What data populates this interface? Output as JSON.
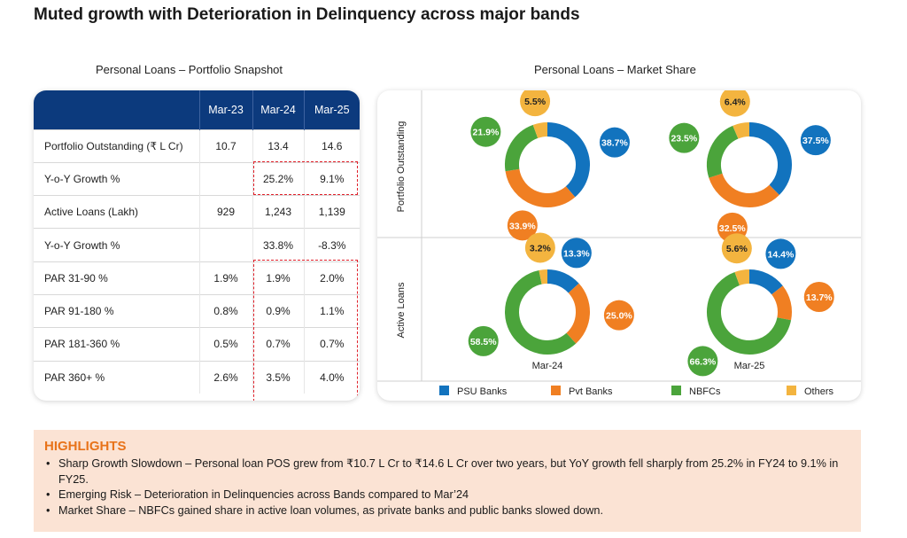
{
  "page": {
    "title": "Muted growth with Deterioration in Delinquency across major bands"
  },
  "table": {
    "title": "Personal Loans – Portfolio Snapshot",
    "columns": [
      "Mar-23",
      "Mar-24",
      "Mar-25"
    ],
    "rows": [
      {
        "label": "Portfolio Outstanding (₹ L Cr)",
        "values": [
          "10.7",
          "13.4",
          "14.6"
        ]
      },
      {
        "label": "Y-o-Y Growth %",
        "values": [
          "",
          "25.2%",
          "9.1%"
        ]
      },
      {
        "label": "Active Loans (Lakh)",
        "values": [
          "929",
          "1,243",
          "1,139"
        ]
      },
      {
        "label": "Y-o-Y Growth %",
        "values": [
          "",
          "33.8%",
          "-8.3%"
        ]
      },
      {
        "label": "PAR 31-90 %",
        "values": [
          "1.9%",
          "1.9%",
          "2.0%"
        ]
      },
      {
        "label": "PAR 91-180 %",
        "values": [
          "0.8%",
          "0.9%",
          "1.1%"
        ]
      },
      {
        "label": "PAR 181-360 %",
        "values": [
          "0.5%",
          "0.7%",
          "0.7%"
        ]
      },
      {
        "label": "PAR 360+ %",
        "values": [
          "2.6%",
          "3.5%",
          "4.0%"
        ]
      }
    ]
  },
  "colors": {
    "PSU Banks": "#1273be",
    "Pvt Banks": "#f07f22",
    "NBFCs": "#4ba43b",
    "Others": "#f3b43f",
    "table_header": "#0c3a7d",
    "dash": "#e0202a",
    "highlight_bg": "#fbe3d4",
    "highlight_title": "#e8731a"
  },
  "chart_data": {
    "type": "pie",
    "title": "Personal Loans – Market Share",
    "series_order": [
      "PSU Banks",
      "Pvt Banks",
      "NBFCs",
      "Others"
    ],
    "row_labels": [
      "Portfolio Outstanding",
      "Active Loans"
    ],
    "col_labels": [
      "Mar-24",
      "Mar-25"
    ],
    "donuts": [
      {
        "row": "Portfolio Outstanding",
        "col": "Mar-24",
        "values": [
          38.7,
          33.9,
          21.9,
          5.5
        ],
        "labels": [
          "38.7%",
          "33.9%",
          "21.9%",
          "5.5%"
        ]
      },
      {
        "row": "Portfolio Outstanding",
        "col": "Mar-25",
        "values": [
          37.5,
          32.5,
          23.5,
          6.4
        ],
        "labels": [
          "37.5%",
          "32.5%",
          "23.5%",
          "6.4%"
        ]
      },
      {
        "row": "Active Loans",
        "col": "Mar-24",
        "values": [
          13.3,
          25.0,
          58.5,
          3.2
        ],
        "labels": [
          "13.3%",
          "25.0%",
          "58.5%",
          "3.2%"
        ]
      },
      {
        "row": "Active Loans",
        "col": "Mar-25",
        "values": [
          14.4,
          13.7,
          66.3,
          5.6
        ],
        "labels": [
          "14.4%",
          "13.7%",
          "66.3%",
          "5.6%"
        ]
      }
    ],
    "legend": [
      "PSU Banks",
      "Pvt Banks",
      "NBFCs",
      "Others"
    ]
  },
  "highlights": {
    "title": "HIGHLIGHTS",
    "items": [
      "Sharp Growth Slowdown – Personal loan POS grew from ₹10.7 L Cr to ₹14.6 L Cr over two years, but YoY growth fell sharply from 25.2% in FY24 to 9.1% in FY25.",
      "Emerging Risk – Deterioration in Delinquencies across Bands compared to Mar’24",
      "Market Share – NBFCs gained share in active loan volumes, as private banks and public banks slowed down."
    ]
  }
}
